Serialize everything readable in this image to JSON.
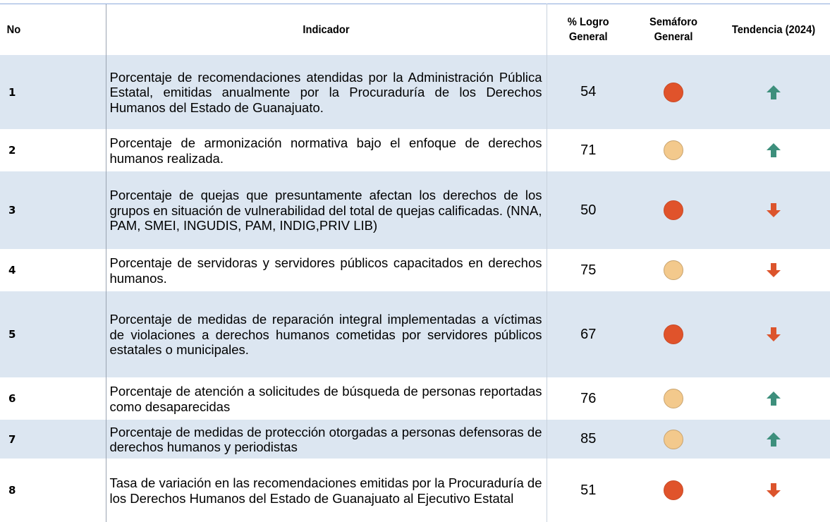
{
  "table": {
    "header": [
      "No",
      "Indicador",
      "% Logro General",
      "Semáforo General",
      "Tendencia (2024)"
    ],
    "row_colors": [
      "#dce6f1",
      "#ffffff"
    ],
    "rows": [
      {
        "no": "1",
        "indicador": "Porcentaje de recomendaciones atendidas por la Administración Pública Estatal, emitidas anualmente por la Procuraduría de los Derechos Humanos del Estado de Guanajuato.",
        "logro": "54",
        "semaforo_color": "#e0532b",
        "trend": "up",
        "trend_color": "#3d8f7c"
      },
      {
        "no": "2",
        "indicador": "Porcentaje de armonización normativa bajo el enfoque de derechos humanos realizada.",
        "logro": "71",
        "semaforo_color": "#f3c98c",
        "trend": "up",
        "trend_color": "#3d8f7c"
      },
      {
        "no": "3",
        "indicador": "Porcentaje de quejas que presuntamente afectan los derechos de los grupos en situación de vulnerabilidad del total de quejas calificadas. (NNA, PAM, SMEI, INGUDIS, PAM, INDIG,PRIV LIB)",
        "logro": "50",
        "semaforo_color": "#e0532b",
        "trend": "down",
        "trend_color": "#dc542c"
      },
      {
        "no": "4",
        "indicador": "Porcentaje de servidoras y servidores públicos capacitados en derechos humanos.",
        "logro": "75",
        "semaforo_color": "#f3c98c",
        "trend": "down",
        "trend_color": "#dc542c"
      },
      {
        "no": "5",
        "indicador": "Porcentaje de medidas de reparación integral implementadas a víctimas de violaciones a derechos humanos cometidas por servidores públicos estatales o municipales.",
        "logro": "67",
        "semaforo_color": "#e0532b",
        "trend": "down",
        "trend_color": "#dc542c"
      },
      {
        "no": "6",
        "indicador": "Porcentaje de atención a solicitudes de búsqueda de personas reportadas como desaparecidas",
        "logro": "76",
        "semaforo_color": "#f3c98c",
        "trend": "up",
        "trend_color": "#3d8f7c"
      },
      {
        "no": "7",
        "indicador": "Porcentaje de medidas de protección otorgadas a personas defensoras de derechos humanos y periodistas",
        "logro": "85",
        "semaforo_color": "#f3c98c",
        "trend": "up",
        "trend_color": "#3d8f7c"
      },
      {
        "no": "8",
        "indicador": "Tasa de variación en las recomendaciones emitidas por la Procuraduría de los Derechos Humanos del Estado de Guanajuato al Ejecutivo Estatal",
        "logro": "51",
        "semaforo_color": "#e0532b",
        "trend": "down",
        "trend_color": "#dc542c"
      }
    ]
  }
}
